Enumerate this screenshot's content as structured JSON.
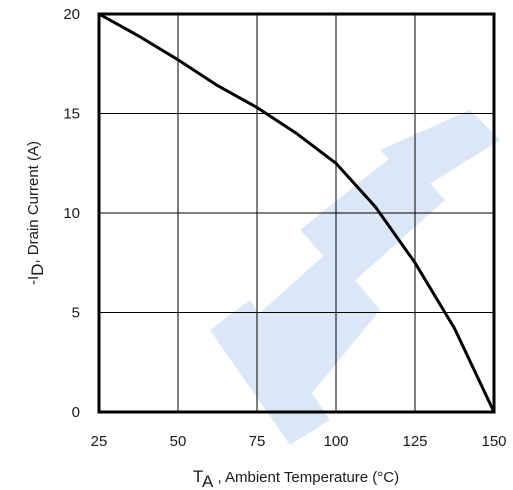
{
  "chart_data": {
    "type": "line",
    "xlabel_main": "T",
    "xlabel_sub": "A",
    "xlabel_rest": " , Ambient Temperature (°C)",
    "ylabel_main": "-I",
    "ylabel_sub": "D",
    "ylabel_rest": ",  Drain Current (A)",
    "xlim": [
      25,
      150
    ],
    "ylim": [
      0,
      20
    ],
    "x_ticks": [
      25,
      50,
      75,
      100,
      125,
      150
    ],
    "y_ticks": [
      0,
      5,
      10,
      15,
      20
    ],
    "grid": true,
    "series": [
      {
        "x": [
          25,
          37.5,
          50,
          62.5,
          75,
          87.5,
          100,
          112.5,
          125,
          137.5,
          150
        ],
        "values": [
          20,
          18.9,
          17.7,
          16.4,
          15.3,
          14.0,
          12.5,
          10.3,
          7.5,
          4.2,
          0
        ]
      }
    ]
  },
  "watermark_color": "#dbe7f6"
}
